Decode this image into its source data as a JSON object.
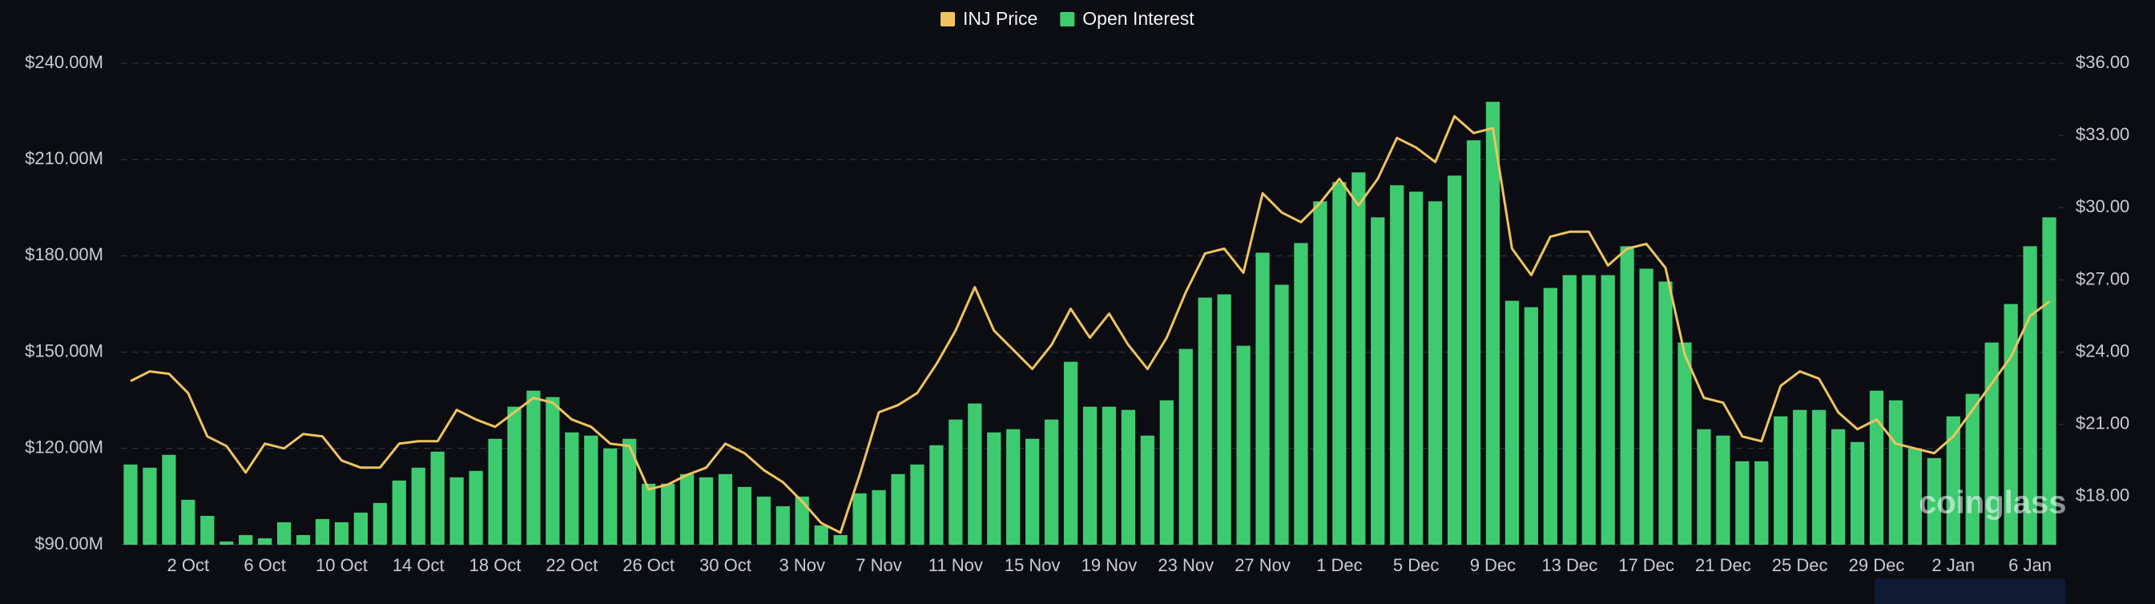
{
  "chart_data": {
    "type": "bar",
    "categories": [
      null,
      null,
      null,
      "2 Oct",
      null,
      null,
      null,
      "6 Oct",
      null,
      null,
      null,
      "10 Oct",
      null,
      null,
      null,
      "14 Oct",
      null,
      null,
      null,
      "18 Oct",
      null,
      null,
      null,
      "22 Oct",
      null,
      null,
      null,
      "26 Oct",
      null,
      null,
      null,
      "30 Oct",
      null,
      null,
      null,
      "3 Nov",
      null,
      null,
      null,
      "7 Nov",
      null,
      null,
      null,
      "11 Nov",
      null,
      null,
      null,
      "15 Nov",
      null,
      null,
      null,
      "19 Nov",
      null,
      null,
      null,
      "23 Nov",
      null,
      null,
      null,
      "27 Nov",
      null,
      null,
      null,
      "1 Dec",
      null,
      null,
      null,
      "5 Dec",
      null,
      null,
      null,
      "9 Dec",
      null,
      null,
      null,
      "13 Dec",
      null,
      null,
      null,
      "17 Dec",
      null,
      null,
      null,
      "21 Dec",
      null,
      null,
      null,
      "25 Dec",
      null,
      null,
      null,
      "29 Dec",
      null,
      null,
      null,
      "2 Jan",
      null,
      null,
      null,
      "6 Jan",
      null
    ],
    "series": [
      {
        "name": "INJ Price",
        "type": "line",
        "axis": "y2",
        "color": "#f0c35e",
        "values": [
          22.8,
          23.2,
          23.1,
          22.3,
          20.5,
          20.1,
          19.0,
          20.2,
          20.0,
          20.6,
          20.5,
          19.5,
          19.2,
          19.2,
          20.2,
          20.3,
          20.3,
          21.6,
          21.2,
          20.9,
          21.5,
          22.1,
          21.9,
          21.2,
          20.9,
          20.2,
          20.1,
          18.3,
          18.5,
          18.9,
          19.2,
          20.2,
          19.8,
          19.1,
          18.6,
          17.8,
          16.9,
          16.5,
          18.9,
          21.5,
          21.8,
          22.3,
          23.5,
          24.9,
          26.7,
          24.9,
          24.1,
          23.3,
          24.3,
          25.8,
          24.6,
          25.6,
          24.3,
          23.3,
          24.6,
          26.5,
          28.1,
          28.3,
          27.3,
          30.6,
          29.8,
          29.4,
          30.2,
          31.2,
          30.1,
          31.2,
          32.9,
          32.5,
          31.9,
          33.8,
          33.1,
          33.3,
          28.3,
          27.2,
          28.8,
          29.0,
          29.0,
          27.6,
          28.3,
          28.5,
          27.5,
          23.9,
          22.1,
          21.9,
          20.5,
          20.3,
          22.6,
          23.2,
          22.9,
          21.5,
          20.8,
          21.2,
          20.2,
          20.0,
          19.8,
          20.5,
          21.6,
          22.7,
          23.8,
          25.5,
          26.1
        ]
      },
      {
        "name": "Open Interest",
        "type": "bar",
        "color": "#3ecb70",
        "values": [
          115,
          114,
          118,
          104,
          99,
          91,
          93,
          92,
          97,
          93,
          98,
          97,
          100,
          103,
          110,
          114,
          119,
          111,
          113,
          123,
          133,
          138,
          136,
          125,
          124,
          120,
          123,
          109,
          109,
          112,
          111,
          112,
          108,
          105,
          102,
          105,
          96,
          93,
          106,
          107,
          112,
          115,
          121,
          129,
          134,
          125,
          126,
          123,
          129,
          147,
          133,
          133,
          132,
          124,
          135,
          151,
          167,
          168,
          152,
          181,
          171,
          184,
          197,
          203,
          206,
          192,
          202,
          200,
          197,
          205,
          216,
          228,
          166,
          164,
          170,
          174,
          174,
          174,
          183,
          176,
          172,
          153,
          126,
          124,
          116,
          116,
          130,
          132,
          132,
          126,
          122,
          138,
          135,
          120,
          117,
          130,
          137,
          153,
          165,
          183,
          192
        ]
      }
    ],
    "ylim": [
      90,
      240
    ],
    "yticks": [
      {
        "value": 90,
        "label": "$90.00M"
      },
      {
        "value": 120,
        "label": "$120.00M"
      },
      {
        "value": 150,
        "label": "$150.00M"
      },
      {
        "value": 180,
        "label": "$180.00M"
      },
      {
        "value": 210,
        "label": "$210.00M"
      },
      {
        "value": 240,
        "label": "$240.00M"
      }
    ],
    "y2lim": [
      16,
      36
    ],
    "y2ticks": [
      {
        "value": 18,
        "label": "$18.00"
      },
      {
        "value": 21,
        "label": "$21.00"
      },
      {
        "value": 24,
        "label": "$24.00"
      },
      {
        "value": 27,
        "label": "$27.00"
      },
      {
        "value": 30,
        "label": "$30.00"
      },
      {
        "value": 33,
        "label": "$33.00"
      },
      {
        "value": 36,
        "label": "$36.00"
      }
    ],
    "grid": true,
    "legend": "top",
    "watermark": "coinglass"
  }
}
